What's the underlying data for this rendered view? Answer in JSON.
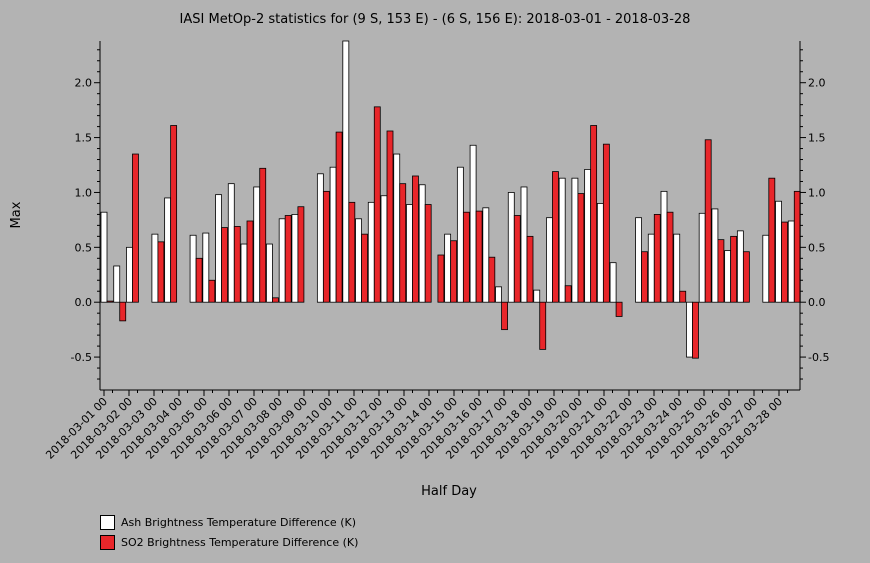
{
  "chart_data": {
    "type": "bar",
    "title": "IASI MetOp-2 statistics for (9 S, 153 E) - (6 S, 156 E): 2018-03-01 - 2018-03-28",
    "xlabel": "Half Day",
    "ylabel": "Max",
    "ylim": [
      -0.8,
      2.38
    ],
    "yticks": [
      -0.5,
      0.0,
      0.5,
      1.0,
      1.5,
      2.0
    ],
    "ytick_labels": [
      "-0.5",
      "0.0",
      "0.5",
      "1.0",
      "1.5",
      "2.0"
    ],
    "grid": false,
    "legend_position": "bottom-left",
    "x_tick_labels": [
      "2018-03-01 00",
      "2018-03-02 00",
      "2018-03-03 00",
      "2018-03-04 00",
      "2018-03-05 00",
      "2018-03-06 00",
      "2018-03-07 00",
      "2018-03-08 00",
      "2018-03-09 00",
      "2018-03-10 00",
      "2018-03-11 00",
      "2018-03-12 00",
      "2018-03-13 00",
      "2018-03-14 00",
      "2018-03-15 00",
      "2018-03-16 00",
      "2018-03-17 00",
      "2018-03-18 00",
      "2018-03-19 00",
      "2018-03-20 00",
      "2018-03-21 00",
      "2018-03-22 00",
      "2018-03-23 00",
      "2018-03-24 00",
      "2018-03-25 00",
      "2018-03-26 00",
      "2018-03-27 00",
      "2018-03-28 00"
    ],
    "series": [
      {
        "name": "Ash Brightness Temperature Difference (K)",
        "color": "#ffffff",
        "values": [
          0.82,
          0.33,
          0.5,
          null,
          0.62,
          0.95,
          null,
          0.61,
          0.63,
          0.98,
          1.08,
          0.53,
          1.05,
          0.53,
          0.76,
          0.8,
          null,
          1.17,
          1.23,
          2.38,
          0.76,
          0.91,
          0.97,
          1.35,
          0.89,
          1.07,
          null,
          0.62,
          1.23,
          1.43,
          0.86,
          0.14,
          1.0,
          1.05,
          0.11,
          0.77,
          1.13,
          1.13,
          1.21,
          0.9,
          0.36,
          null,
          0.77,
          0.62,
          1.01,
          0.62,
          -0.5,
          0.81,
          0.85,
          0.47,
          0.65,
          null,
          0.61,
          0.92,
          0.74
        ]
      },
      {
        "name": "SO2 Brightness Temperature Difference (K)",
        "color": "#e8262a",
        "values": [
          0.01,
          -0.17,
          1.35,
          null,
          0.55,
          1.61,
          null,
          0.4,
          0.2,
          0.68,
          0.69,
          0.74,
          1.22,
          0.04,
          0.79,
          0.87,
          null,
          1.01,
          1.55,
          0.91,
          0.62,
          1.78,
          1.56,
          1.08,
          1.15,
          0.89,
          0.43,
          0.56,
          0.82,
          0.83,
          0.41,
          -0.25,
          0.79,
          0.6,
          -0.43,
          1.19,
          0.15,
          0.99,
          1.61,
          1.44,
          -0.13,
          null,
          0.46,
          0.8,
          0.82,
          0.1,
          -0.51,
          1.48,
          0.57,
          0.6,
          0.46,
          null,
          1.13,
          0.73,
          1.01
        ]
      }
    ]
  }
}
